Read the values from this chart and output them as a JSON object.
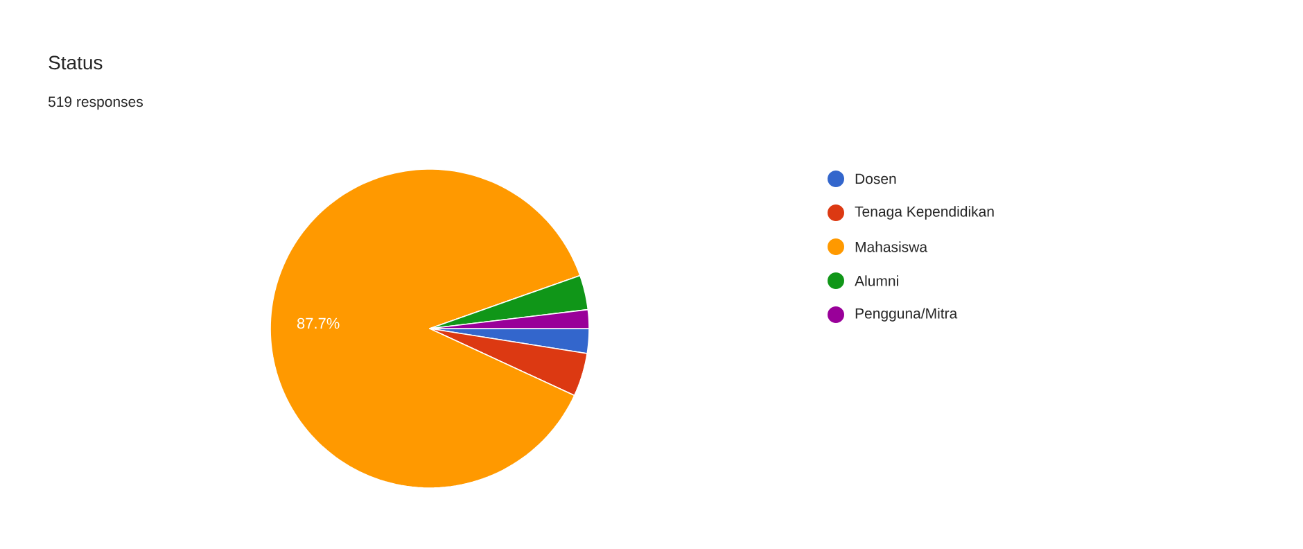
{
  "chart_data": {
    "type": "pie",
    "title": "Status",
    "subtitle": "519 responses",
    "categories": [
      "Dosen",
      "Tenaga Kependidikan",
      "Mahasiswa",
      "Alumni",
      "Pengguna/Mitra"
    ],
    "values": [
      2.5,
      4.4,
      87.7,
      3.5,
      1.9
    ],
    "colors": [
      "#3366cc",
      "#dc3912",
      "#ff9900",
      "#109618",
      "#990099"
    ],
    "value_labels": [
      null,
      null,
      "87.7%",
      null,
      null
    ],
    "legend": "right"
  }
}
